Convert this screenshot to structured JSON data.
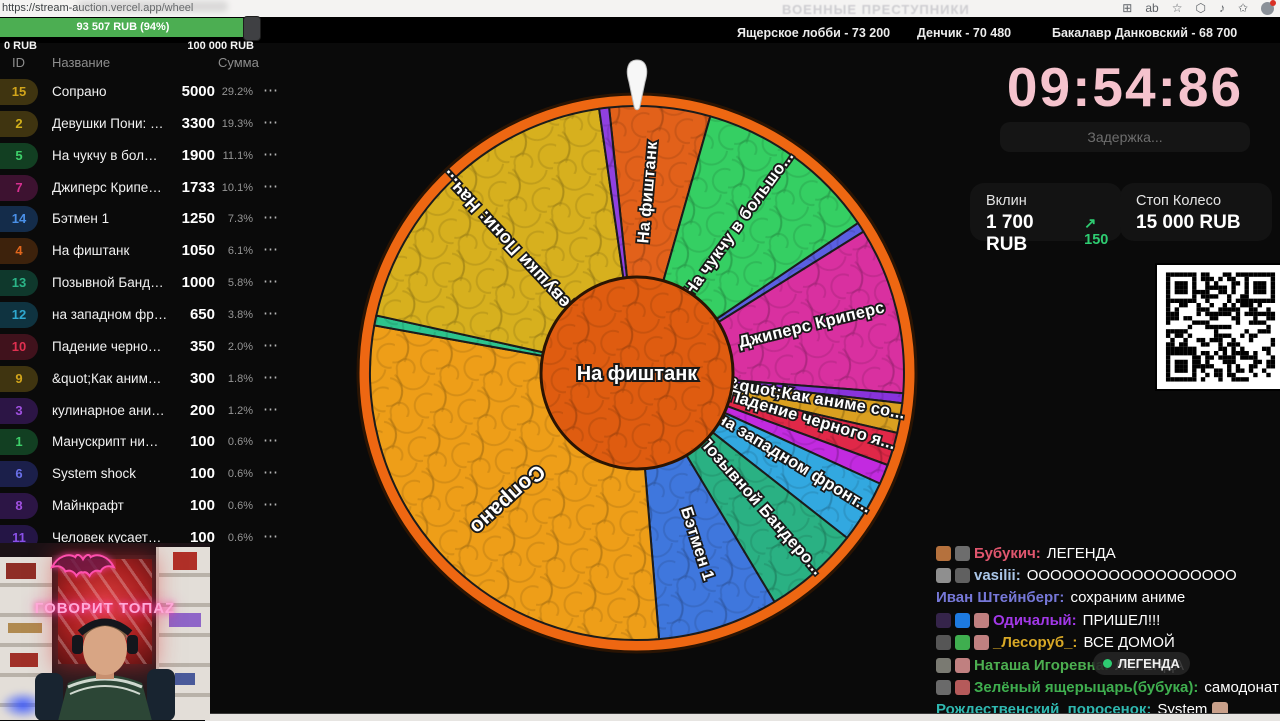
{
  "browser": {
    "url": "https://stream-auction.vercel.app/wheel",
    "watermark": "ВОЕННЫЕ ПРЕСТУПНИКИ",
    "icons": {
      "extensions": "⊞",
      "translate": "ab",
      "favorites": "☆",
      "sidebar": "⬡",
      "media": "♪",
      "collections": "✩"
    }
  },
  "leaderboard": [
    "Ящерское лобби - 73 200",
    "Денчик - 70 480",
    "Бакалавр Данковский - 68 700"
  ],
  "progress": {
    "label": "93 507 RUB (94%)",
    "pct": 94,
    "min": "0 RUB",
    "max": "100 000 RUB",
    "color": "#4cae52"
  },
  "table": {
    "headers": [
      "ID",
      "Название",
      "Сумма"
    ],
    "rows": [
      {
        "id": "15",
        "name": "Сопрано",
        "sum": "5000",
        "pct": "29.2%",
        "fg": "#d2a51b",
        "bg": "#3f3410"
      },
      {
        "id": "2",
        "name": "Девушки Пони: …",
        "sum": "3300",
        "pct": "19.3%",
        "fg": "#d2b01b",
        "bg": "#3f3410"
      },
      {
        "id": "5",
        "name": "На чукчу в бол…",
        "sum": "1900",
        "pct": "11.1%",
        "fg": "#3ed06a",
        "bg": "#123f22"
      },
      {
        "id": "7",
        "name": "Джиперс Крипе…",
        "sum": "1733",
        "pct": "10.1%",
        "fg": "#d63090",
        "bg": "#3d1230"
      },
      {
        "id": "14",
        "name": "Бэтмен 1",
        "sum": "1250",
        "pct": "7.3%",
        "fg": "#4a90e8",
        "bg": "#142c4a"
      },
      {
        "id": "4",
        "name": "На фиштанк",
        "sum": "1050",
        "pct": "6.1%",
        "fg": "#e2661c",
        "bg": "#3d220c"
      },
      {
        "id": "13",
        "name": "Позывной Банд…",
        "sum": "1000",
        "pct": "5.8%",
        "fg": "#2bb588",
        "bg": "#0f382c"
      },
      {
        "id": "12",
        "name": "на западном фр…",
        "sum": "650",
        "pct": "3.8%",
        "fg": "#2fa9d0",
        "bg": "#0f3340"
      },
      {
        "id": "10",
        "name": "Падение черно…",
        "sum": "350",
        "pct": "2.0%",
        "fg": "#e03050",
        "bg": "#40121c"
      },
      {
        "id": "9",
        "name": "&quot;Как аним…",
        "sum": "300",
        "pct": "1.8%",
        "fg": "#d2a51b",
        "bg": "#3f3410"
      },
      {
        "id": "3",
        "name": "кулинарное ани…",
        "sum": "200",
        "pct": "1.2%",
        "fg": "#a050e0",
        "bg": "#2c1545"
      },
      {
        "id": "1",
        "name": "Манускрипт ни…",
        "sum": "100",
        "pct": "0.6%",
        "fg": "#3ed06a",
        "bg": "#123f22"
      },
      {
        "id": "6",
        "name": "System shock",
        "sum": "100",
        "pct": "0.6%",
        "fg": "#6a70e8",
        "bg": "#1b1f4a"
      },
      {
        "id": "8",
        "name": "Майнкрафт",
        "sum": "100",
        "pct": "0.6%",
        "fg": "#a050e0",
        "bg": "#2c1545"
      },
      {
        "id": "11",
        "name": "Человек кусает…",
        "sum": "100",
        "pct": "0.6%",
        "fg": "#8a50e8",
        "bg": "#241545"
      }
    ]
  },
  "wheel": {
    "start_angle": -6,
    "center_label": "На фиштанк",
    "segments": [
      {
        "label": "На фиштанк",
        "pct": 6.1,
        "color": "#e2611a",
        "text": true
      },
      {
        "label": "На чукчу в большо...",
        "pct": 11.1,
        "color": "#35cf63",
        "text": true
      },
      {
        "label": "System shock",
        "pct": 0.6,
        "color": "#5a5fe2",
        "text": false
      },
      {
        "label": "Джиперс Криперс",
        "pct": 10.1,
        "color": "#d930a0",
        "text": true
      },
      {
        "label": "Майнкрафт",
        "pct": 0.6,
        "color": "#8833dd",
        "text": false
      },
      {
        "label": "&quot;Как аниме со...",
        "pct": 1.8,
        "color": "#daa020",
        "text": true
      },
      {
        "label": "Падение черного я...",
        "pct": 2.0,
        "color": "#e02848",
        "text": true
      },
      {
        "label": "кулинарное ани...",
        "pct": 1.2,
        "color": "#c22ae0",
        "text": false
      },
      {
        "label": "на западном фронт...",
        "pct": 3.8,
        "color": "#32a8e0",
        "text": true
      },
      {
        "label": "Позывной Бандеро...",
        "pct": 5.8,
        "color": "#2ab183",
        "text": true
      },
      {
        "label": "Бэтмен 1",
        "pct": 7.3,
        "color": "#3f77dd",
        "text": true
      },
      {
        "label": "Сопрано",
        "pct": 29.2,
        "color": "#ee9e18",
        "text": true
      },
      {
        "label": "Манускрипт ни...",
        "pct": 0.6,
        "color": "#2dc48d",
        "text": false
      },
      {
        "label": "Девушки Пони: Нач...",
        "pct": 19.3,
        "color": "#d7b01e",
        "text": true
      },
      {
        "label": "Человек кусает...",
        "pct": 0.6,
        "color": "#9040e0",
        "text": false
      }
    ]
  },
  "timer": {
    "value": "09:54:86",
    "delay_placeholder": "Задержка..."
  },
  "stats": {
    "cards": [
      {
        "label": "Вклин",
        "value": "1 700 RUB",
        "delta_arrow": "↗",
        "delta": "150"
      },
      {
        "label": "Стоп Колесо",
        "value": "15 000 RUB"
      }
    ]
  },
  "chat": {
    "tooltip": "ЛЕГЕНДА",
    "messages": [
      {
        "badges": [
          "#b5713d",
          "#6d6d6d"
        ],
        "user": "Бубукич:",
        "color": "#e0566e",
        "text": "ЛЕГЕНДА"
      },
      {
        "badges": [
          "#8f8f8f",
          "#606060"
        ],
        "user": "vasilii:",
        "color": "#aac6e8",
        "text": "ОООООООООООООООООО"
      },
      {
        "badges": [],
        "user": "Иван Штейнберг:",
        "color": "#7678d8",
        "text": "сохраним аниме"
      },
      {
        "badges": [
          "#35244a",
          "#1d7ae0",
          "#c08080"
        ],
        "user": "Одичалый:",
        "color": "#a238e8",
        "text": "ПРИШЕЛ!!!"
      },
      {
        "badges": [
          "#565656",
          "#3fae4f",
          "#c08080"
        ],
        "user": "_Лесоруб_:",
        "color": "#d8a826",
        "text": "ВСЕ ДОМОЙ"
      },
      {
        "badges": [
          "#7a7a72",
          "#c08080"
        ],
        "user": "Наташа Игоревна:",
        "color": "#4caf50",
        "text": "ЛЕГЕНДА"
      },
      {
        "badges": [
          "#6a6a6a",
          "#b55a5a"
        ],
        "user": "Зелёный ящерыцарь(бубука):",
        "color": "#3faf4f",
        "text": "самодонат"
      },
      {
        "badges": [],
        "user": "Рождественский_поросенок:",
        "color": "#2fb8b0",
        "text": "System",
        "emote": "#c9a08a"
      }
    ]
  },
  "webcam": {
    "neon_text": "ГОВОРИТ ТОПАZ"
  }
}
